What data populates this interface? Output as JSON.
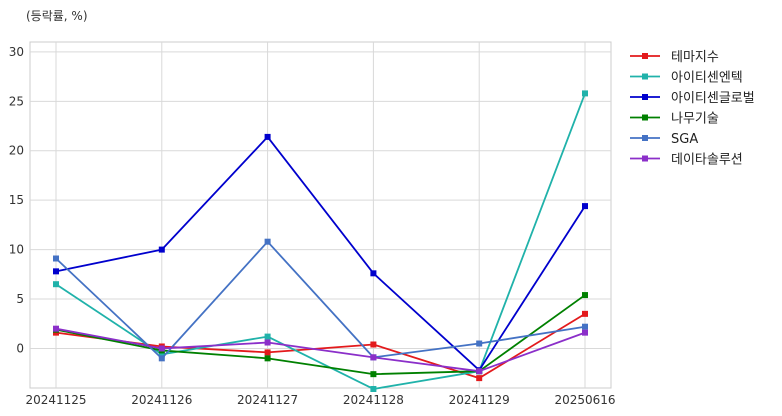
{
  "chart_data": {
    "type": "line",
    "title": "",
    "unit_label": "(등락률, %)",
    "xlabel": "",
    "ylabel": "",
    "x": [
      "20241125",
      "20241126",
      "20241127",
      "20241128",
      "20241129",
      "20250616"
    ],
    "ylim": [
      -4,
      31
    ],
    "yticks": [
      0,
      5,
      10,
      15,
      20,
      25,
      30
    ],
    "grid": true,
    "legend": "right-top",
    "series": [
      {
        "name": "테마지수",
        "color": "#e31a1c",
        "values": [
          1.6,
          0.2,
          -0.4,
          0.4,
          -3.0,
          3.5
        ]
      },
      {
        "name": "아이티센엔텍",
        "color": "#20b2aa",
        "values": [
          6.5,
          -0.6,
          1.2,
          -4.1,
          -2.3,
          25.8
        ]
      },
      {
        "name": "아이티센글로벌",
        "color": "#0000cd",
        "values": [
          7.8,
          10.0,
          21.4,
          7.6,
          -2.2,
          14.4
        ]
      },
      {
        "name": "나무기술",
        "color": "#008000",
        "values": [
          1.9,
          -0.2,
          -1.0,
          -2.6,
          -2.3,
          5.4
        ]
      },
      {
        "name": "SGA",
        "color": "#4472c4",
        "values": [
          9.1,
          -1.0,
          10.8,
          -0.9,
          0.5,
          2.2
        ]
      },
      {
        "name": "데이타솔루션",
        "color": "#8b2fc9",
        "values": [
          2.0,
          0.0,
          0.6,
          -0.9,
          -2.3,
          1.6
        ]
      }
    ]
  }
}
